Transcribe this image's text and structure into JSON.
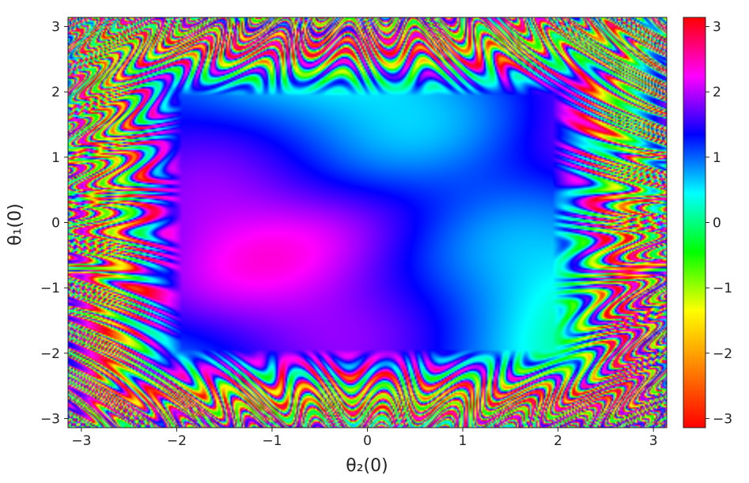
{
  "chart_data": {
    "type": "heatmap",
    "title": "",
    "xlabel": "θ₂(0)",
    "ylabel": "θ₁(0)",
    "xlim": [
      -3.14,
      3.14
    ],
    "ylim": [
      -3.14,
      3.14
    ],
    "x_ticks": [
      -3,
      -2,
      -1,
      0,
      1,
      2,
      3
    ],
    "y_ticks": [
      -3,
      -2,
      -1,
      0,
      1,
      2,
      3
    ],
    "x_tick_labels": [
      "−3",
      "−2",
      "−1",
      "0",
      "1",
      "2",
      "3"
    ],
    "y_tick_labels": [
      "−3",
      "−2",
      "−1",
      "0",
      "1",
      "2",
      "3"
    ],
    "colorbar": {
      "range": [
        -3.14,
        3.14
      ],
      "ticks": [
        3,
        2,
        1,
        0,
        -1,
        -2,
        -3
      ],
      "tick_labels": [
        "3",
        "2",
        "1",
        "0",
        "−1",
        "−2",
        "−3"
      ],
      "colormap": "hsv",
      "stops": [
        "#ff0000",
        "#ff8000",
        "#ffff00",
        "#00ff00",
        "#00ffff",
        "#0000ff",
        "#ff00ff",
        "#ff0000"
      ]
    },
    "grid": false
  }
}
